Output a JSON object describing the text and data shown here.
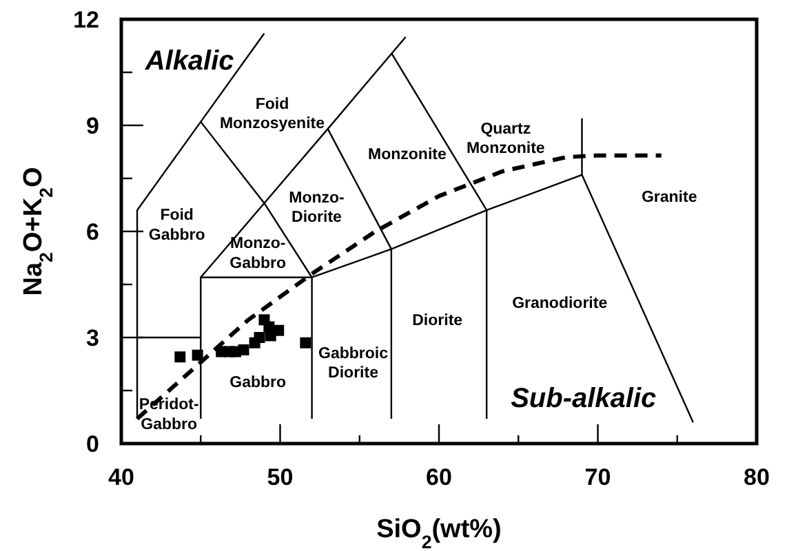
{
  "chart_data": {
    "type": "scatter",
    "xlabel": "SiO$_{2}$(wt%)",
    "ylabel": "Na$_{2}$O+K$_{2}$O",
    "xlim": [
      40,
      80
    ],
    "ylim": [
      0,
      12
    ],
    "xticks": [
      40,
      {
        "value": 45,
        "label": null
      },
      50,
      {
        "value": 55,
        "label": null
      },
      60,
      {
        "value": 65,
        "label": null
      },
      70,
      {
        "value": 75,
        "label": null
      },
      80
    ],
    "yticks": [
      0,
      {
        "value": 1.5,
        "label": null
      },
      3,
      {
        "value": 4.5,
        "label": null
      },
      6,
      {
        "value": 7.5,
        "label": null
      },
      9,
      {
        "value": 10.5,
        "label": null
      },
      12
    ],
    "grid": false,
    "series": [
      {
        "marker": "square",
        "color": "#000000",
        "x": [
          43.7,
          44.8,
          46.3,
          46.8,
          47.2,
          47.7,
          48.4,
          48.7,
          49.0,
          49.3,
          49.4,
          49.9,
          51.6
        ],
        "values": [
          2.45,
          2.5,
          2.6,
          2.6,
          2.6,
          2.65,
          2.85,
          3.0,
          3.5,
          3.3,
          3.05,
          3.2,
          2.85
        ]
      },
      {
        "type": "line",
        "line_style": "dashed",
        "color": "#000000",
        "x": [
          41,
          45,
          48,
          52,
          56,
          60,
          64,
          68,
          70,
          74
        ],
        "values": [
          0.7,
          2.3,
          3.5,
          4.8,
          6.0,
          7.0,
          7.7,
          8.1,
          8.15,
          8.15
        ]
      },
      {
        "type": "line",
        "color": "#000000",
        "x": [
          41,
          41,
          45,
          49
        ],
        "values": [
          0.7,
          6.6,
          9.1,
          11.6
        ]
      },
      {
        "type": "line",
        "color": "#000000",
        "x": [
          45,
          49,
          52
        ],
        "values": [
          9.1,
          6.8,
          4.7
        ]
      },
      {
        "type": "line",
        "color": "#000000",
        "x": [
          45,
          49,
          53,
          57.9
        ],
        "values": [
          4.7,
          6.8,
          8.9,
          11.5
        ]
      },
      {
        "type": "line",
        "color": "#000000",
        "x": [
          53,
          57
        ],
        "values": [
          8.9,
          5.5
        ]
      },
      {
        "type": "line",
        "color": "#000000",
        "x": [
          57,
          63
        ],
        "values": [
          11.05,
          6.6
        ]
      },
      {
        "type": "line",
        "color": "#000000",
        "x": [
          52,
          57,
          63,
          69
        ],
        "values": [
          4.7,
          5.5,
          6.6,
          7.6
        ]
      },
      {
        "type": "line",
        "color": "#000000",
        "x": [
          69,
          69,
          76
        ],
        "values": [
          9.2,
          7.6,
          0.6
        ]
      },
      {
        "type": "line",
        "color": "#000000",
        "x": [
          45,
          45,
          52,
          52
        ],
        "values": [
          0.7,
          4.7,
          4.7,
          0.7
        ]
      },
      {
        "type": "line",
        "color": "#000000",
        "x": [
          57,
          57
        ],
        "values": [
          5.5,
          0.7
        ]
      },
      {
        "type": "line",
        "color": "#000000",
        "x": [
          63,
          63
        ],
        "values": [
          6.6,
          0.7
        ]
      },
      {
        "type": "line",
        "color": "#000000",
        "x": [
          41,
          45
        ],
        "values": [
          3,
          3
        ]
      }
    ],
    "annotations": [
      "Alkalic",
      "Sub-alkalic",
      "Foid\nMonzosyenite",
      "Monzonite",
      "Quartz\nMonzonite",
      "Granite",
      "Foid\nGabbro",
      "Monzo-\nDiorite",
      "Monzo-\nGabbro",
      "Diorite",
      "Granodiorite",
      "Gabbro",
      "Gabbroic\nDiorite",
      "Peridot-\nGabbro"
    ]
  }
}
